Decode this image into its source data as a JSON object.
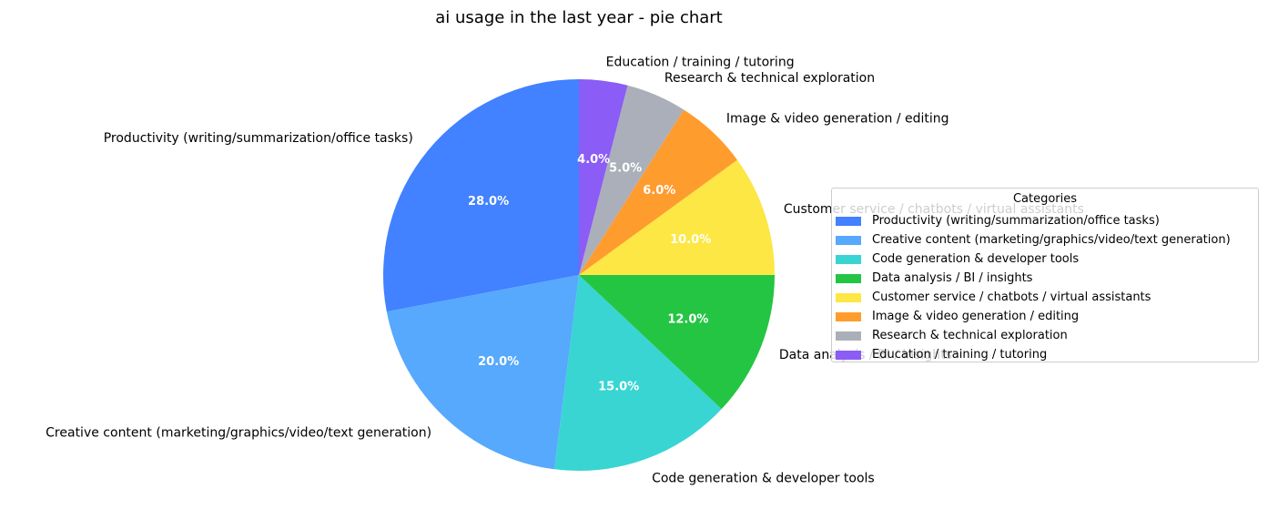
{
  "chart_data": {
    "type": "pie",
    "title": "ai usage in the last year - pie chart",
    "start_angle_deg": 90,
    "direction": "counterclockwise",
    "slices": [
      {
        "label": "Productivity (writing/summarization/office tasks)",
        "value": 28.0,
        "pct_label": "28.0%",
        "color": "#4281ff"
      },
      {
        "label": "Creative content (marketing/graphics/video/text generation)",
        "value": 20.0,
        "pct_label": "20.0%",
        "color": "#56a9fc"
      },
      {
        "label": "Code generation & developer tools",
        "value": 15.0,
        "pct_label": "15.0%",
        "color": "#38d5d3"
      },
      {
        "label": "Data analysis / BI / insights",
        "value": 12.0,
        "pct_label": "12.0%",
        "color": "#24c543"
      },
      {
        "label": "Customer service / chatbots / virtual assistants",
        "value": 10.0,
        "pct_label": "10.0%",
        "color": "#fce744"
      },
      {
        "label": "Image & video generation / editing",
        "value": 6.0,
        "pct_label": "6.0%",
        "color": "#ff9c2e"
      },
      {
        "label": "Research & technical exploration",
        "value": 5.0,
        "pct_label": "5.0%",
        "color": "#abafb9"
      },
      {
        "label": "Education / training / tutoring",
        "value": 4.0,
        "pct_label": "4.0%",
        "color": "#8b5cf6"
      }
    ],
    "legend": {
      "title": "Categories",
      "placement": "right"
    }
  }
}
